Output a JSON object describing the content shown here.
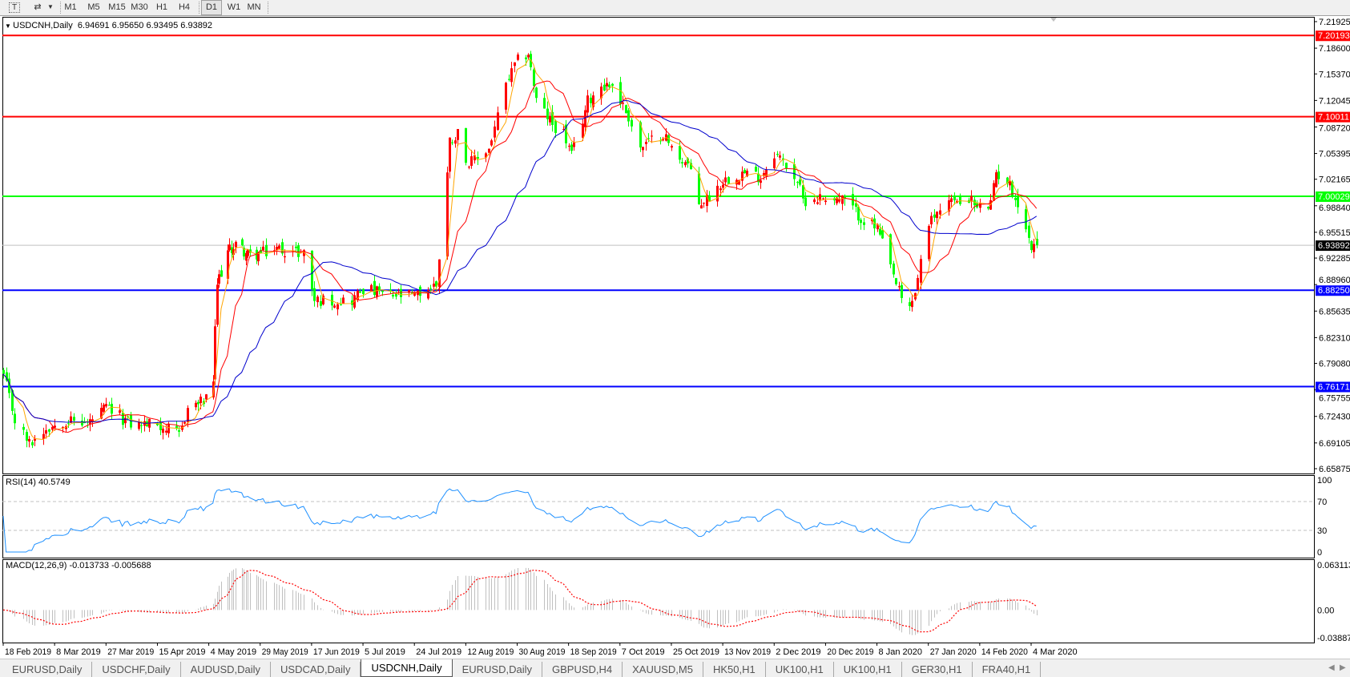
{
  "toolbar": {
    "text_tool_icon": "text-tool-icon",
    "objects_icon": "draw-objects-icon",
    "periods": [
      "M1",
      "M5",
      "M15",
      "M30",
      "H1",
      "H4",
      "D1",
      "W1",
      "MN"
    ],
    "active_period": "D1"
  },
  "chart": {
    "symbol_title": "USDCNH,Daily",
    "ohlc": "6.94691 6.95650 6.93495 6.93892"
  },
  "chart_data": {
    "type": "candlestick",
    "symbol": "USDCNH",
    "timeframe": "Daily",
    "last_bar": {
      "open": 6.94691,
      "high": 6.9565,
      "low": 6.93495,
      "close": 6.93892
    },
    "candle_colors": {
      "up": "#ff0000",
      "down": "#00ff00"
    },
    "close_anchors": [
      [
        "2019-02-18",
        6.775
      ],
      [
        "2019-02-22",
        6.72
      ],
      [
        "2019-02-27",
        6.69
      ],
      [
        "2019-03-05",
        6.71
      ],
      [
        "2019-03-12",
        6.72
      ],
      [
        "2019-03-20",
        6.715
      ],
      [
        "2019-03-27",
        6.735
      ],
      [
        "2019-04-05",
        6.715
      ],
      [
        "2019-04-15",
        6.715
      ],
      [
        "2019-04-23",
        6.7
      ],
      [
        "2019-04-26",
        6.735
      ],
      [
        "2019-05-03",
        6.745
      ],
      [
        "2019-05-06",
        6.77
      ],
      [
        "2019-05-08",
        6.89
      ],
      [
        "2019-05-13",
        6.93
      ],
      [
        "2019-05-17",
        6.94
      ],
      [
        "2019-05-24",
        6.925
      ],
      [
        "2019-05-31",
        6.93
      ],
      [
        "2019-06-05",
        6.935
      ],
      [
        "2019-06-10",
        6.93
      ],
      [
        "2019-06-14",
        6.93
      ],
      [
        "2019-06-18",
        6.87
      ],
      [
        "2019-06-24",
        6.87
      ],
      [
        "2019-07-01",
        6.87
      ],
      [
        "2019-07-05",
        6.885
      ],
      [
        "2019-07-15",
        6.875
      ],
      [
        "2019-07-24",
        6.875
      ],
      [
        "2019-08-01",
        6.89
      ],
      [
        "2019-08-05",
        7.03
      ],
      [
        "2019-08-06",
        7.07
      ],
      [
        "2019-08-09",
        7.08
      ],
      [
        "2019-08-13",
        7.04
      ],
      [
        "2019-08-20",
        7.06
      ],
      [
        "2019-08-26",
        7.14
      ],
      [
        "2019-08-30",
        7.17
      ],
      [
        "2019-09-03",
        7.18
      ],
      [
        "2019-09-06",
        7.12
      ],
      [
        "2019-09-12",
        7.09
      ],
      [
        "2019-09-16",
        7.08
      ],
      [
        "2019-09-19",
        7.05
      ],
      [
        "2019-09-25",
        7.12
      ],
      [
        "2019-09-30",
        7.14
      ],
      [
        "2019-10-04",
        7.14
      ],
      [
        "2019-10-10",
        7.1
      ],
      [
        "2019-10-14",
        7.06
      ],
      [
        "2019-10-22",
        7.08
      ],
      [
        "2019-10-25",
        7.06
      ],
      [
        "2019-10-31",
        7.04
      ],
      [
        "2019-11-04",
        6.99
      ],
      [
        "2019-11-08",
        7.0
      ],
      [
        "2019-11-13",
        7.02
      ],
      [
        "2019-11-20",
        7.03
      ],
      [
        "2019-11-27",
        7.025
      ],
      [
        "2019-12-02",
        7.055
      ],
      [
        "2019-12-06",
        7.04
      ],
      [
        "2019-12-10",
        7.02
      ],
      [
        "2019-12-12",
        6.995
      ],
      [
        "2019-12-20",
        7.0
      ],
      [
        "2019-12-27",
        6.995
      ],
      [
        "2020-01-03",
        6.97
      ],
      [
        "2020-01-08",
        6.96
      ],
      [
        "2020-01-13",
        6.91
      ],
      [
        "2020-01-17",
        6.87
      ],
      [
        "2020-01-20",
        6.86
      ],
      [
        "2020-01-22",
        6.88
      ],
      [
        "2020-01-24",
        6.92
      ],
      [
        "2020-01-28",
        6.97
      ],
      [
        "2020-02-03",
        7.0
      ],
      [
        "2020-02-06",
        6.99
      ],
      [
        "2020-02-10",
        7.0
      ],
      [
        "2020-02-13",
        6.985
      ],
      [
        "2020-02-18",
        6.99
      ],
      [
        "2020-02-20",
        7.03
      ],
      [
        "2020-02-24",
        7.02
      ],
      [
        "2020-02-27",
        7.0
      ],
      [
        "2020-03-02",
        6.96
      ],
      [
        "2020-03-04",
        6.935
      ],
      [
        "2020-03-06",
        6.93892
      ]
    ],
    "ylim": [
      6.65875,
      7.21925
    ],
    "y_ticks": [
      "7.21925",
      "7.18600",
      "7.15370",
      "7.12045",
      "7.08720",
      "7.05395",
      "7.02165",
      "6.98840",
      "6.95515",
      "6.92285",
      "6.88960",
      "6.85635",
      "6.82310",
      "6.79080",
      "6.75755",
      "6.72430",
      "6.69105",
      "6.65875"
    ],
    "x_tick_labels": [
      "18 Feb 2019",
      "8 Mar 2019",
      "27 Mar 2019",
      "15 Apr 2019",
      "4 May 2019",
      "29 May 2019",
      "17 Jun 2019",
      "5 Jul 2019",
      "24 Jul 2019",
      "12 Aug 2019",
      "30 Aug 2019",
      "18 Sep 2019",
      "7 Oct 2019",
      "25 Oct 2019",
      "13 Nov 2019",
      "2 Dec 2019",
      "20 Dec 2019",
      "8 Jan 2020",
      "27 Jan 2020",
      "14 Feb 2020",
      "4 Mar 2020"
    ],
    "horizontal_lines": [
      {
        "price": "7.20193",
        "color": "#ff0000"
      },
      {
        "price": "7.10011",
        "color": "#ff0000"
      },
      {
        "price": "7.00029",
        "color": "#00ff00"
      },
      {
        "price": "6.88250",
        "color": "#0000ff"
      },
      {
        "price": "6.76171",
        "color": "#0000ff"
      }
    ],
    "bid_line": {
      "price": "6.93892",
      "color": "#c0c0c0",
      "label_bg": "#000000"
    },
    "moving_averages": [
      {
        "color": "#ffa500"
      },
      {
        "color": "#ff0000"
      },
      {
        "color": "#0000cd"
      }
    ],
    "grid": false,
    "rsi": {
      "label": "RSI(14) 40.5749",
      "ylim": [
        0,
        100
      ],
      "levels": [
        70,
        30
      ],
      "ticks": [
        "100",
        "70",
        "30",
        "0"
      ],
      "color": "#1e90ff"
    },
    "macd": {
      "label": "MACD(12,26,9) -0.013733 -0.005688",
      "ylim": [
        -0.038872,
        0.063113
      ],
      "ticks": [
        "0.063113",
        "0.00",
        "-0.038872"
      ],
      "histogram_color": "#c0c0c0",
      "signal_color": "#ff0000"
    }
  },
  "tabs": [
    "EURUSD,Daily",
    "USDCHF,Daily",
    "AUDUSD,Daily",
    "USDCAD,Daily",
    "USDCNH,Daily",
    "EURUSD,Daily",
    "GBPUSD,H4",
    "XAUUSD,M5",
    "HK50,H1",
    "UK100,H1",
    "UK100,H1",
    "GER30,H1",
    "FRA40,H1"
  ],
  "active_tab": "USDCNH,Daily"
}
